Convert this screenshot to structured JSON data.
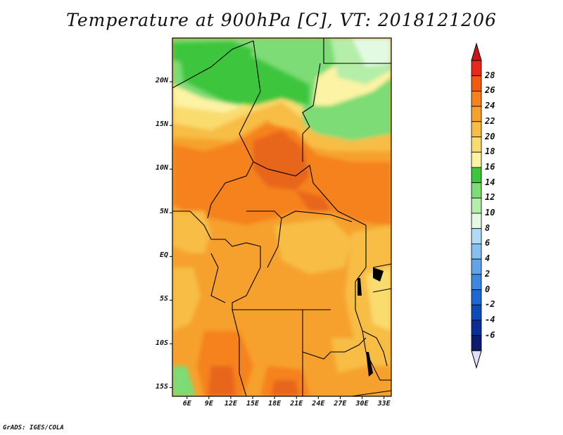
{
  "title": "Temperature at 900hPa [C], VT: 2018121206",
  "credit": "GrADS: IGES/COLA",
  "lat_labels": [
    "20N",
    "15N",
    "10N",
    "5N",
    "EQ",
    "5S",
    "10S",
    "15S"
  ],
  "lat_values": [
    20,
    15,
    10,
    5,
    0,
    -5,
    -10,
    -15
  ],
  "lon_labels": [
    "6E",
    "9E",
    "12E",
    "15E",
    "18E",
    "21E",
    "24E",
    "27E",
    "30E",
    "33E"
  ],
  "lon_values": [
    6,
    9,
    12,
    15,
    18,
    21,
    24,
    27,
    30,
    33
  ],
  "extent": {
    "lon_min": 4,
    "lon_max": 34,
    "lat_min": -16,
    "lat_max": 25
  },
  "colorbar": {
    "labels": [
      "28",
      "26",
      "24",
      "22",
      "20",
      "18",
      "16",
      "14",
      "12",
      "10",
      "8",
      "6",
      "4",
      "2",
      "0",
      "-2",
      "-4",
      "-6"
    ],
    "colors": [
      "#e8281c",
      "#f25a0f",
      "#f5821c",
      "#f6a12e",
      "#f7bd45",
      "#fadb6e",
      "#fdf3a4",
      "#3cc63c",
      "#7ddc74",
      "#b4eea8",
      "#e2fae2",
      "#b2daf6",
      "#86c0f0",
      "#60a4ea",
      "#3c87e2",
      "#1e68d2",
      "#0d4cb6",
      "#0a2d96",
      "#0b1c6e"
    ],
    "top_arrow_color": "#c8141a",
    "bottom_arrow_color": "#e0e0fa"
  },
  "accent_colors": {
    "orange_hot": "#e8651b",
    "green_cool": "#3cc63c"
  }
}
